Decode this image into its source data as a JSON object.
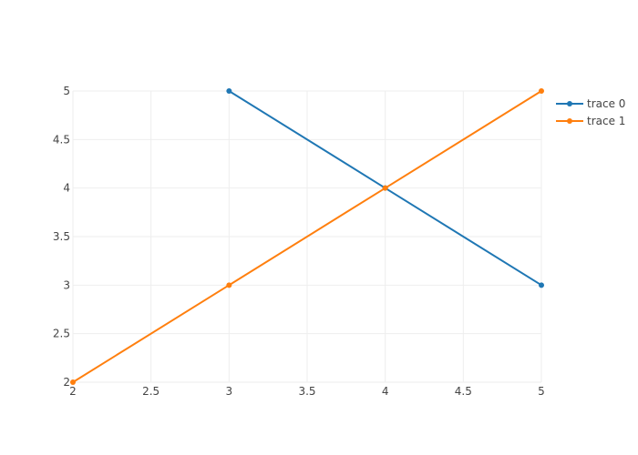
{
  "chart_data": {
    "type": "line",
    "title": "",
    "xlabel": "",
    "ylabel": "",
    "xlim": [
      2,
      5
    ],
    "ylim": [
      2,
      5
    ],
    "x_ticks": [
      2,
      2.5,
      3,
      3.5,
      4,
      4.5,
      5
    ],
    "y_ticks": [
      2,
      2.5,
      3,
      3.5,
      4,
      4.5,
      5
    ],
    "grid": true,
    "legend_position": "top-right",
    "series": [
      {
        "name": "trace 0",
        "color": "#1f77b4",
        "mode": "lines+markers",
        "points": [
          {
            "x": 3,
            "y": 5
          },
          {
            "x": 4,
            "y": 4
          },
          {
            "x": 5,
            "y": 3
          }
        ]
      },
      {
        "name": "trace 1",
        "color": "#ff7f0e",
        "mode": "lines+markers",
        "points": [
          {
            "x": 2,
            "y": 2
          },
          {
            "x": 3,
            "y": 3
          },
          {
            "x": 4,
            "y": 4
          },
          {
            "x": 5,
            "y": 5
          }
        ]
      }
    ]
  }
}
